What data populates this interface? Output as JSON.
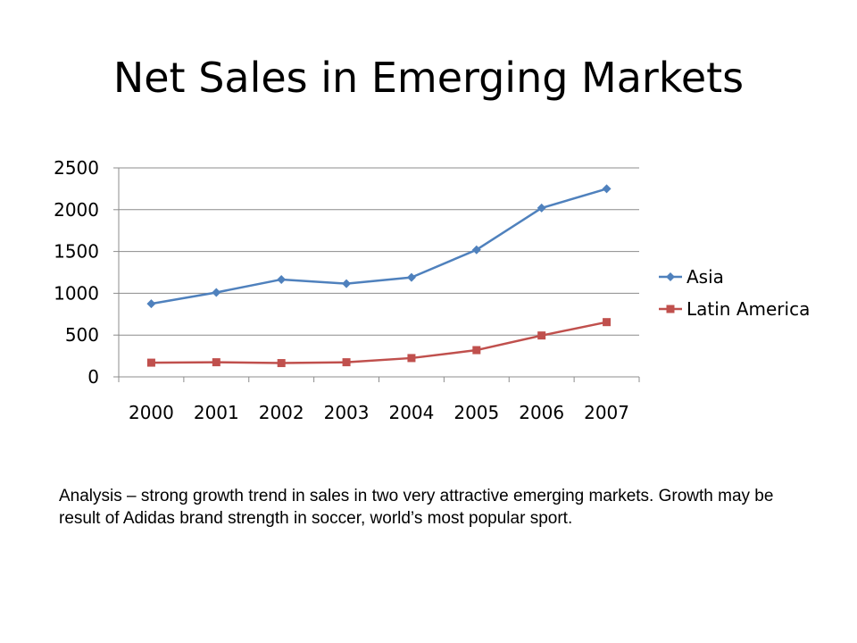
{
  "slide": {
    "title": "Net Sales in Emerging Markets",
    "analysis": "Analysis – strong growth trend in sales in two very attractive emerging markets.  Growth may be result of Adidas brand strength in soccer, world’s most popular sport."
  },
  "chart_data": {
    "type": "line",
    "title": "",
    "xlabel": "",
    "ylabel": "",
    "categories": [
      "2000",
      "2001",
      "2002",
      "2003",
      "2004",
      "2005",
      "2006",
      "2007"
    ],
    "yticks": [
      0,
      500,
      1000,
      1500,
      2000,
      2500
    ],
    "ylim": [
      0,
      2500
    ],
    "grid": "horizontal",
    "legend_position": "right",
    "series": [
      {
        "name": "Asia",
        "marker": "diamond",
        "color": "#4F81BD",
        "values": [
          875,
          1010,
          1165,
          1115,
          1190,
          1520,
          2020,
          2250
        ]
      },
      {
        "name": "Latin America",
        "marker": "square",
        "color": "#C0504D",
        "values": [
          170,
          175,
          165,
          175,
          225,
          320,
          495,
          655
        ]
      }
    ]
  }
}
